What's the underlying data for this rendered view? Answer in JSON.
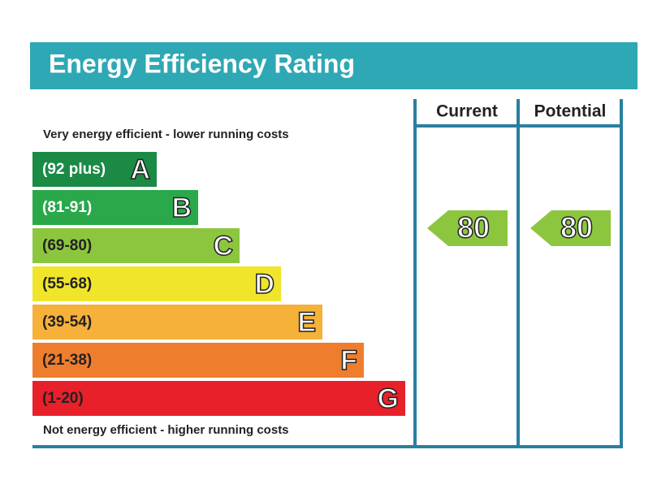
{
  "title": "Energy Efficiency Rating",
  "top_note": "Very energy efficient - lower running costs",
  "bottom_note": "Not energy efficient - higher running costs",
  "columns": [
    "Current",
    "Potential"
  ],
  "bands": [
    {
      "range": "(92 plus)",
      "letter": "A",
      "color": "#1a8a45",
      "text_color": "#ffffff"
    },
    {
      "range": "(81-91)",
      "letter": "B",
      "color": "#2aa84a",
      "text_color": "#ffffff"
    },
    {
      "range": "(69-80)",
      "letter": "C",
      "color": "#8cc63f",
      "text_color": "#222222"
    },
    {
      "range": "(55-68)",
      "letter": "D",
      "color": "#f0e52b",
      "text_color": "#222222"
    },
    {
      "range": "(39-54)",
      "letter": "E",
      "color": "#f5b13a",
      "text_color": "#222222"
    },
    {
      "range": "(21-38)",
      "letter": "F",
      "color": "#ef7d2e",
      "text_color": "#222222"
    },
    {
      "range": "(1-20)",
      "letter": "G",
      "color": "#e8202a",
      "text_color": "#222222"
    }
  ],
  "ratings": [
    {
      "value": "80",
      "color": "#8cc63f"
    },
    {
      "value": "80",
      "color": "#8cc63f"
    }
  ]
}
